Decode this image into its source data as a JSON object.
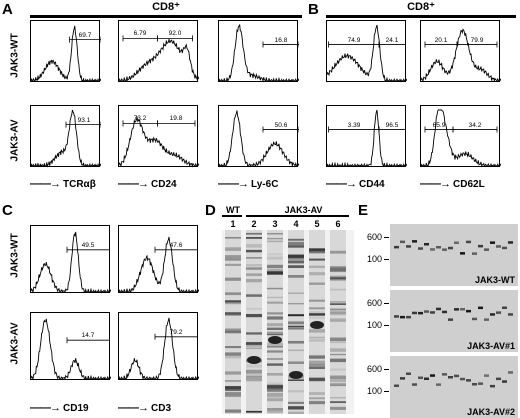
{
  "panel_A": {
    "letter": "A",
    "header": "CD8⁺",
    "row_labels": [
      "JAK3-WT",
      "JAK3-AV"
    ],
    "x_labels": [
      "TCRαβ",
      "CD24",
      "Ly-6C"
    ],
    "values": {
      "wt": [
        [
          "69.7"
        ],
        [
          "6.79",
          "92.0"
        ],
        [
          "16.8"
        ]
      ],
      "av": [
        [
          "93.1"
        ],
        [
          "73.2",
          "19.8"
        ],
        [
          "50.6"
        ]
      ]
    }
  },
  "panel_B": {
    "letter": "B",
    "header": "CD8⁺",
    "x_labels": [
      "CD44",
      "CD62L"
    ],
    "values": {
      "wt": [
        [
          "74.9",
          "24.1"
        ],
        [
          "20.1",
          "79.9"
        ]
      ],
      "av": [
        [
          "3.39",
          "96.5"
        ],
        [
          "65.9",
          "34.2"
        ]
      ]
    }
  },
  "panel_C": {
    "letter": "C",
    "row_labels": [
      "JAK3-WT",
      "JAK3-AV"
    ],
    "x_labels": [
      "CD19",
      "CD3"
    ],
    "values": {
      "wt": [
        [
          "49.5"
        ],
        [
          "47.6"
        ]
      ],
      "av": [
        [
          "14.7"
        ],
        [
          "79.2"
        ]
      ]
    }
  },
  "panel_D": {
    "letter": "D",
    "wt_label": "WT",
    "group_label": "JAK3-AV",
    "lanes": [
      "1",
      "2",
      "3",
      "4",
      "5",
      "6"
    ]
  },
  "panel_E": {
    "letter": "E",
    "markers": [
      "600",
      "100"
    ],
    "gels": [
      "JAK3-WT",
      "JAK3-AV#1",
      "JAK3-AV#2"
    ]
  }
}
